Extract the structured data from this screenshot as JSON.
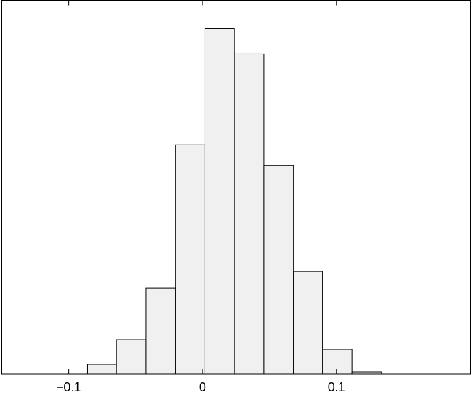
{
  "chart_data": {
    "type": "histogram",
    "bins": [
      -0.0862,
      -0.0642,
      -0.0422,
      -0.0202,
      0.0018,
      0.0238,
      0.0458,
      0.0678,
      0.0898,
      0.1118,
      0.1338
    ],
    "values": [
      14,
      50,
      125,
      333,
      502,
      465,
      303,
      149,
      36,
      3
    ],
    "color": "#f0f0f0",
    "xlim": [
      -0.15,
      0.2
    ],
    "xticks": [
      {
        "value": -0.1,
        "label": "−0.1"
      },
      0,
      0.1
    ],
    "ylim": [
      0,
      543
    ]
  }
}
